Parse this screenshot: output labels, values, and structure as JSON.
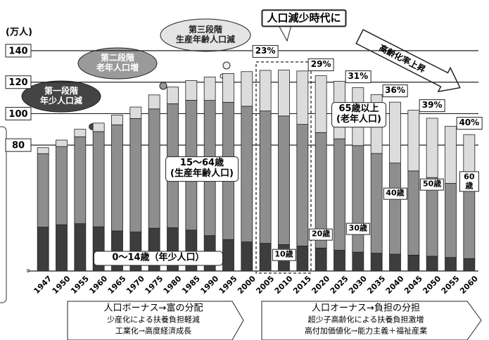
{
  "chart_data": {
    "type": "stacked_bar",
    "ylabel": "(万人)",
    "categories": [
      "1947",
      "1950",
      "1955",
      "1960",
      "1965",
      "1970",
      "1975",
      "1980",
      "1985",
      "1990",
      "1995",
      "2000",
      "2005",
      "2010",
      "2015",
      "2020",
      "2025",
      "2030",
      "2035",
      "2040",
      "2045",
      "2050",
      "2055",
      "2060"
    ],
    "series": [
      {
        "name": "0～14歳（年少人口）",
        "color": "#3d3d3d",
        "values": [
          27.9,
          29.4,
          30.1,
          28.1,
          25.5,
          24.8,
          27.2,
          27.5,
          26.0,
          22.5,
          20.0,
          18.5,
          17.6,
          16.8,
          15.9,
          14.6,
          13.2,
          12.0,
          11.3,
          10.7,
          10.1,
          9.4,
          8.6,
          7.9
        ]
      },
      {
        "name": "15～64歳\n(生産年齢人口)",
        "color": "#8e8e8e",
        "values": [
          46.7,
          49.7,
          55.2,
          60.5,
          67.4,
          72.1,
          75.8,
          78.8,
          82.5,
          85.9,
          87.2,
          86.2,
          84.1,
          81.7,
          77.3,
          73.4,
          70.8,
          67.7,
          63.4,
          57.9,
          53.5,
          50.0,
          47.1,
          44.2
        ]
      },
      {
        "name": "65歳以上\n(老年人口)",
        "color": "#dcdcdc",
        "values": [
          3.8,
          4.1,
          4.8,
          5.4,
          6.2,
          7.3,
          8.9,
          10.6,
          12.5,
          14.9,
          18.3,
          22.0,
          25.8,
          29.2,
          33.9,
          36.1,
          36.6,
          36.9,
          37.4,
          38.7,
          38.6,
          37.7,
          36.3,
          34.6
        ]
      }
    ],
    "ylim": [
      0,
      140
    ],
    "yticks": [
      0,
      80,
      100,
      120,
      140
    ],
    "grid": true,
    "annotations": {
      "era": "人口減少時代に",
      "aging": "高齢化率上昇",
      "aging_rates": [
        "23%",
        "29%",
        "31%",
        "36%",
        "39%",
        "40%"
      ],
      "ages": [
        "10歳",
        "20歳",
        "30歳",
        "40歳",
        "50歳",
        "60歳"
      ],
      "clouds": [
        "第一段階\n年少人口減",
        "第二段階\n老年人口増",
        "第三段階\n生産年齢人口減"
      ],
      "bonus": [
        "人口ボーナス→富の分配",
        "少産化による扶養負担軽減",
        "工業化→高度経済成長"
      ],
      "onus": [
        "人口オーナス→負担の分担",
        "超少子高齢化による扶養負担激増",
        "高付加価値化→能力主義＋福祉産業"
      ]
    }
  }
}
